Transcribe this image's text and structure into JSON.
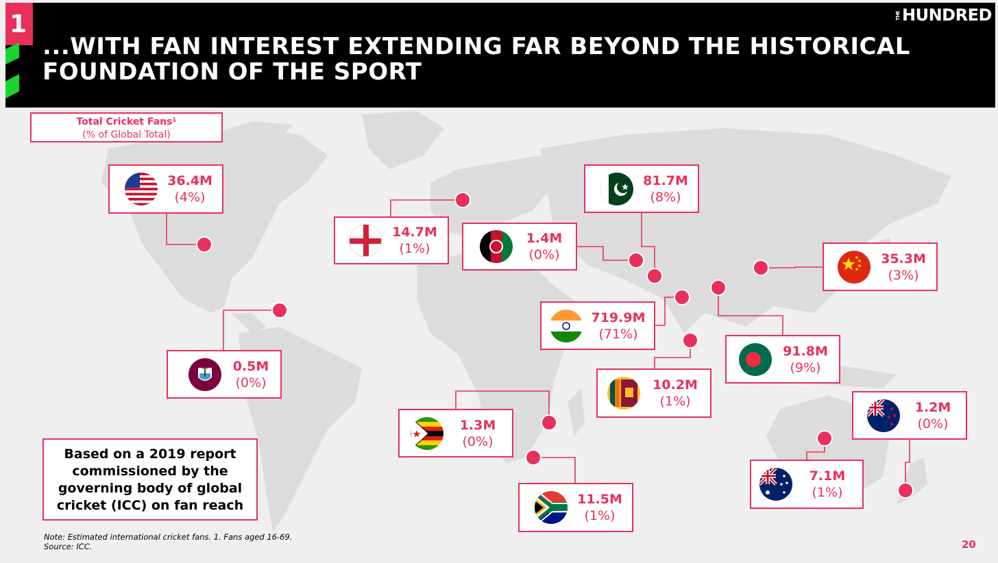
{
  "header": {
    "section_number": "1",
    "title": "...WITH FAN INTEREST EXTENDING FAR BEYOND THE HISTORICAL FOUNDATION OF THE SPORT",
    "logo_small": "THE",
    "logo": "HUNDRED"
  },
  "legend": {
    "line1": "Total Cricket Fans¹",
    "line2": "(% of Global Total)"
  },
  "countries": [
    {
      "name": "usa-flag-icon",
      "value": "36.4M",
      "pct": "(4%)"
    },
    {
      "name": "england-flag-icon",
      "value": "14.7M",
      "pct": "(1%)"
    },
    {
      "name": "afghanistan-flag-icon",
      "value": "1.4M",
      "pct": "(0%)"
    },
    {
      "name": "pakistan-flag-icon",
      "value": "81.7M",
      "pct": "(8%)"
    },
    {
      "name": "china-flag-icon",
      "value": "35.3M",
      "pct": "(3%)"
    },
    {
      "name": "india-flag-icon",
      "value": "719.9M",
      "pct": "(71%)"
    },
    {
      "name": "bangladesh-flag-icon",
      "value": "91.8M",
      "pct": "(9%)"
    },
    {
      "name": "west-indies-flag-icon",
      "value": "0.5M",
      "pct": "(0%)"
    },
    {
      "name": "sri-lanka-flag-icon",
      "value": "10.2M",
      "pct": "(1%)"
    },
    {
      "name": "zimbabwe-flag-icon",
      "value": "1.3M",
      "pct": "(0%)"
    },
    {
      "name": "new-zealand-flag-icon",
      "value": "1.2M",
      "pct": "(0%)"
    },
    {
      "name": "australia-flag-icon",
      "value": "7.1M",
      "pct": "(1%)"
    },
    {
      "name": "south-africa-flag-icon",
      "value": "11.5M",
      "pct": "(1%)"
    }
  ],
  "note": "Based on a 2019 report commissioned by the governing body of global cricket (ICC) on fan reach",
  "footnote": {
    "line1": "Note: Estimated international cricket fans. 1. Fans aged 16-69.",
    "line2": "Source: ICC."
  },
  "page_number": "20",
  "colors": {
    "accent": "#e8305a",
    "header_bg": "#000000",
    "green": "#1bd42f",
    "map": "#dcdcdc"
  }
}
